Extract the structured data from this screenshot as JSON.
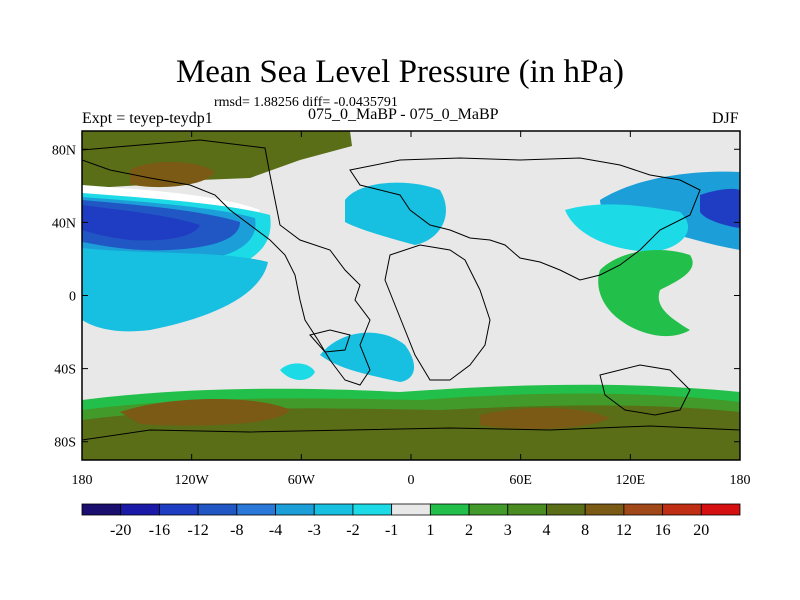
{
  "chart_data": {
    "type": "heatmap",
    "title": "Mean Sea Level Pressure (in hPa)",
    "stats_text": "rmsd= 1.88256 diff= -0.0435791",
    "experiment_label": "Expt = teyep-teydp1",
    "subtitle": "075_0_MaBP - 075_0_MaBP",
    "season": "DJF",
    "x_ticks": [
      "180",
      "120W",
      "60W",
      "0",
      "60E",
      "120E",
      "180"
    ],
    "x_tick_values": [
      -180,
      -120,
      -60,
      0,
      60,
      120,
      180
    ],
    "y_ticks": [
      "80N",
      "40N",
      "0",
      "40S",
      "80S"
    ],
    "y_tick_values": [
      80,
      40,
      0,
      -40,
      -80
    ],
    "xlim": [
      -180,
      180
    ],
    "ylim": [
      -90,
      90
    ],
    "colorbar": {
      "labels": [
        "-20",
        "-16",
        "-12",
        "-8",
        "-4",
        "-3",
        "-2",
        "-1",
        "1",
        "2",
        "3",
        "4",
        "8",
        "12",
        "16",
        "20"
      ],
      "colors": [
        "#1a0e6e",
        "#1b1aa8",
        "#1f3dc2",
        "#2157c4",
        "#2a78d8",
        "#1c9fd8",
        "#17c0e0",
        "#1ddbe6",
        "#e8e8e8",
        "#22c04a",
        "#419a2a",
        "#4a8c22",
        "#5a6e17",
        "#7a5a14",
        "#a04818",
        "#c02e14",
        "#d61010"
      ]
    },
    "field_regions": [
      {
        "name": "north-pacific-high",
        "level": "4",
        "lon": [
          -175,
          -90
        ],
        "lat": [
          52,
          82
        ],
        "color": "#5a6e17"
      },
      {
        "name": "north-pacific-core",
        "level": "8",
        "lon": [
          -160,
          -115
        ],
        "lat": [
          64,
          74
        ],
        "color": "#7a5a14"
      },
      {
        "name": "north-pacific-low-band",
        "level": "-12",
        "lon": [
          -180,
          -120
        ],
        "lat": [
          22,
          48
        ],
        "color": "#1f3dc2"
      },
      {
        "name": "north-atlantic-negative",
        "level": "-2",
        "lon": [
          -40,
          15
        ],
        "lat": [
          30,
          58
        ],
        "color": "#17c0e0"
      },
      {
        "name": "east-pacific-negative",
        "level": "-3",
        "lon": [
          125,
          180
        ],
        "lat": [
          28,
          62
        ],
        "color": "#1c9fd8"
      },
      {
        "name": "indian-ocean-positive",
        "level": "2",
        "lon": [
          95,
          145
        ],
        "lat": [
          -25,
          28
        ],
        "color": "#22c04a"
      },
      {
        "name": "south-atlantic-negative",
        "level": "-2",
        "lon": [
          -65,
          0
        ],
        "lat": [
          -48,
          -18
        ],
        "color": "#17c0e0"
      },
      {
        "name": "southern-ocean-positive",
        "level": "4",
        "lon": [
          -180,
          180
        ],
        "lat": [
          -90,
          -55
        ],
        "color": "#5a6e17"
      },
      {
        "name": "southern-ocean-core",
        "level": "8",
        "lon": [
          -150,
          -40
        ],
        "lat": [
          -72,
          -62
        ],
        "color": "#7a5a14"
      },
      {
        "name": "south-indian-core",
        "level": "8",
        "lon": [
          40,
          100
        ],
        "lat": [
          -72,
          -62
        ],
        "color": "#7a5a14"
      }
    ]
  }
}
